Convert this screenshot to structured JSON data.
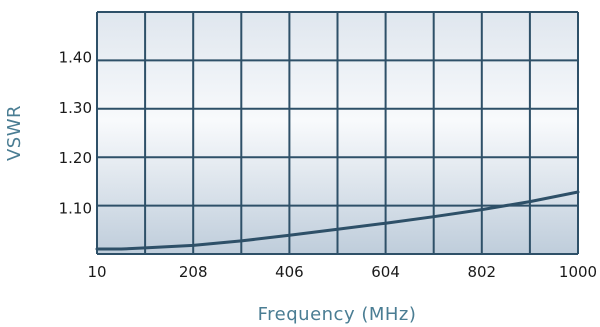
{
  "chart_data": {
    "type": "line",
    "title": "",
    "xlabel": "Frequency (MHz)",
    "ylabel": "VSWR",
    "x_ticks": [
      "10",
      "208",
      "406",
      "604",
      "802",
      "1000"
    ],
    "y_ticks": [
      "1.10",
      "1.20",
      "1.30",
      "1.40"
    ],
    "xlim": [
      10,
      1000
    ],
    "ylim": [
      1.01,
      1.49
    ],
    "grid": true,
    "colors": {
      "line": "#2e5068",
      "grid": "#2e5068",
      "label": "#4a7d93"
    },
    "series": [
      {
        "x": [
          10,
          60,
          109,
          208,
          307,
          406,
          505,
          604,
          703,
          802,
          901,
          1000
        ],
        "y": [
          1.02,
          1.02,
          1.022,
          1.027,
          1.036,
          1.047,
          1.059,
          1.071,
          1.084,
          1.098,
          1.114,
          1.133
        ]
      }
    ]
  }
}
